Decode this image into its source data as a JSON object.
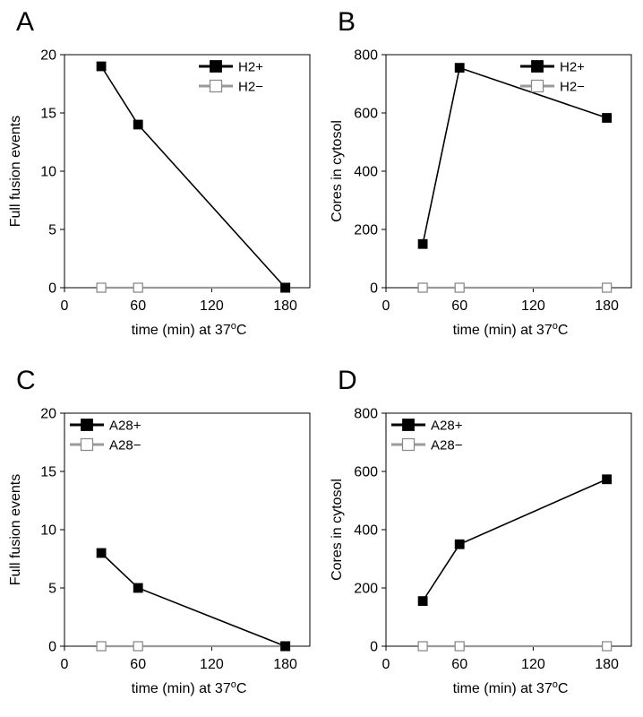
{
  "chart_data": [
    {
      "panel_letter": "A",
      "type": "line",
      "xlabel": "time (min)  at 37",
      "xlabel_sup": "o",
      "xlabel_tail": "C",
      "ylabel": "Full fusion events",
      "xlim": [
        0,
        200
      ],
      "ylim": [
        0,
        20
      ],
      "xticks": [
        0,
        60,
        120,
        180
      ],
      "yticks": [
        0,
        5,
        10,
        15,
        20
      ],
      "grid": false,
      "legend_position": "top-right",
      "series": [
        {
          "name": "H2+",
          "color": "#000000",
          "marker_fill": "#000000",
          "x": [
            30,
            60,
            180
          ],
          "y": [
            19,
            14,
            0
          ]
        },
        {
          "name": "H2−",
          "color": "#999999",
          "marker_fill": "#ffffff",
          "x": [
            30,
            60,
            180
          ],
          "y": [
            0,
            0,
            0
          ]
        }
      ]
    },
    {
      "panel_letter": "B",
      "type": "line",
      "xlabel": "time (min)  at 37",
      "xlabel_sup": "o",
      "xlabel_tail": "C",
      "ylabel": "Cores in cytosol",
      "xlim": [
        0,
        200
      ],
      "ylim": [
        0,
        800
      ],
      "xticks": [
        0,
        60,
        120,
        180
      ],
      "yticks": [
        0,
        200,
        400,
        600,
        800
      ],
      "grid": false,
      "legend_position": "top-right",
      "series": [
        {
          "name": "H2+",
          "color": "#000000",
          "marker_fill": "#000000",
          "x": [
            30,
            60,
            180
          ],
          "y": [
            150,
            755,
            583
          ]
        },
        {
          "name": "H2−",
          "color": "#999999",
          "marker_fill": "#ffffff",
          "x": [
            30,
            60,
            180
          ],
          "y": [
            0,
            0,
            0
          ]
        }
      ]
    },
    {
      "panel_letter": "C",
      "type": "line",
      "xlabel": "time (min)  at 37",
      "xlabel_sup": "o",
      "xlabel_tail": "C",
      "ylabel": "Full fusion events",
      "xlim": [
        0,
        200
      ],
      "ylim": [
        0,
        20
      ],
      "xticks": [
        0,
        60,
        120,
        180
      ],
      "yticks": [
        0,
        5,
        10,
        15,
        20
      ],
      "grid": false,
      "legend_position": "top-left",
      "series": [
        {
          "name": "A28+",
          "color": "#000000",
          "marker_fill": "#000000",
          "x": [
            30,
            60,
            180
          ],
          "y": [
            8,
            5,
            0
          ]
        },
        {
          "name": "A28−",
          "color": "#999999",
          "marker_fill": "#ffffff",
          "x": [
            30,
            60,
            180
          ],
          "y": [
            0,
            0,
            0
          ]
        }
      ]
    },
    {
      "panel_letter": "D",
      "type": "line",
      "xlabel": "time (min)  at 37",
      "xlabel_sup": "o",
      "xlabel_tail": "C",
      "ylabel": "Cores in cytosol",
      "xlim": [
        0,
        200
      ],
      "ylim": [
        0,
        800
      ],
      "xticks": [
        0,
        60,
        120,
        180
      ],
      "yticks": [
        0,
        200,
        400,
        600,
        800
      ],
      "grid": false,
      "legend_position": "top-left",
      "series": [
        {
          "name": "A28+",
          "color": "#000000",
          "marker_fill": "#000000",
          "x": [
            30,
            60,
            180
          ],
          "y": [
            155,
            350,
            573
          ]
        },
        {
          "name": "A28−",
          "color": "#999999",
          "marker_fill": "#ffffff",
          "x": [
            30,
            60,
            180
          ],
          "y": [
            0,
            0,
            0
          ]
        }
      ]
    }
  ]
}
